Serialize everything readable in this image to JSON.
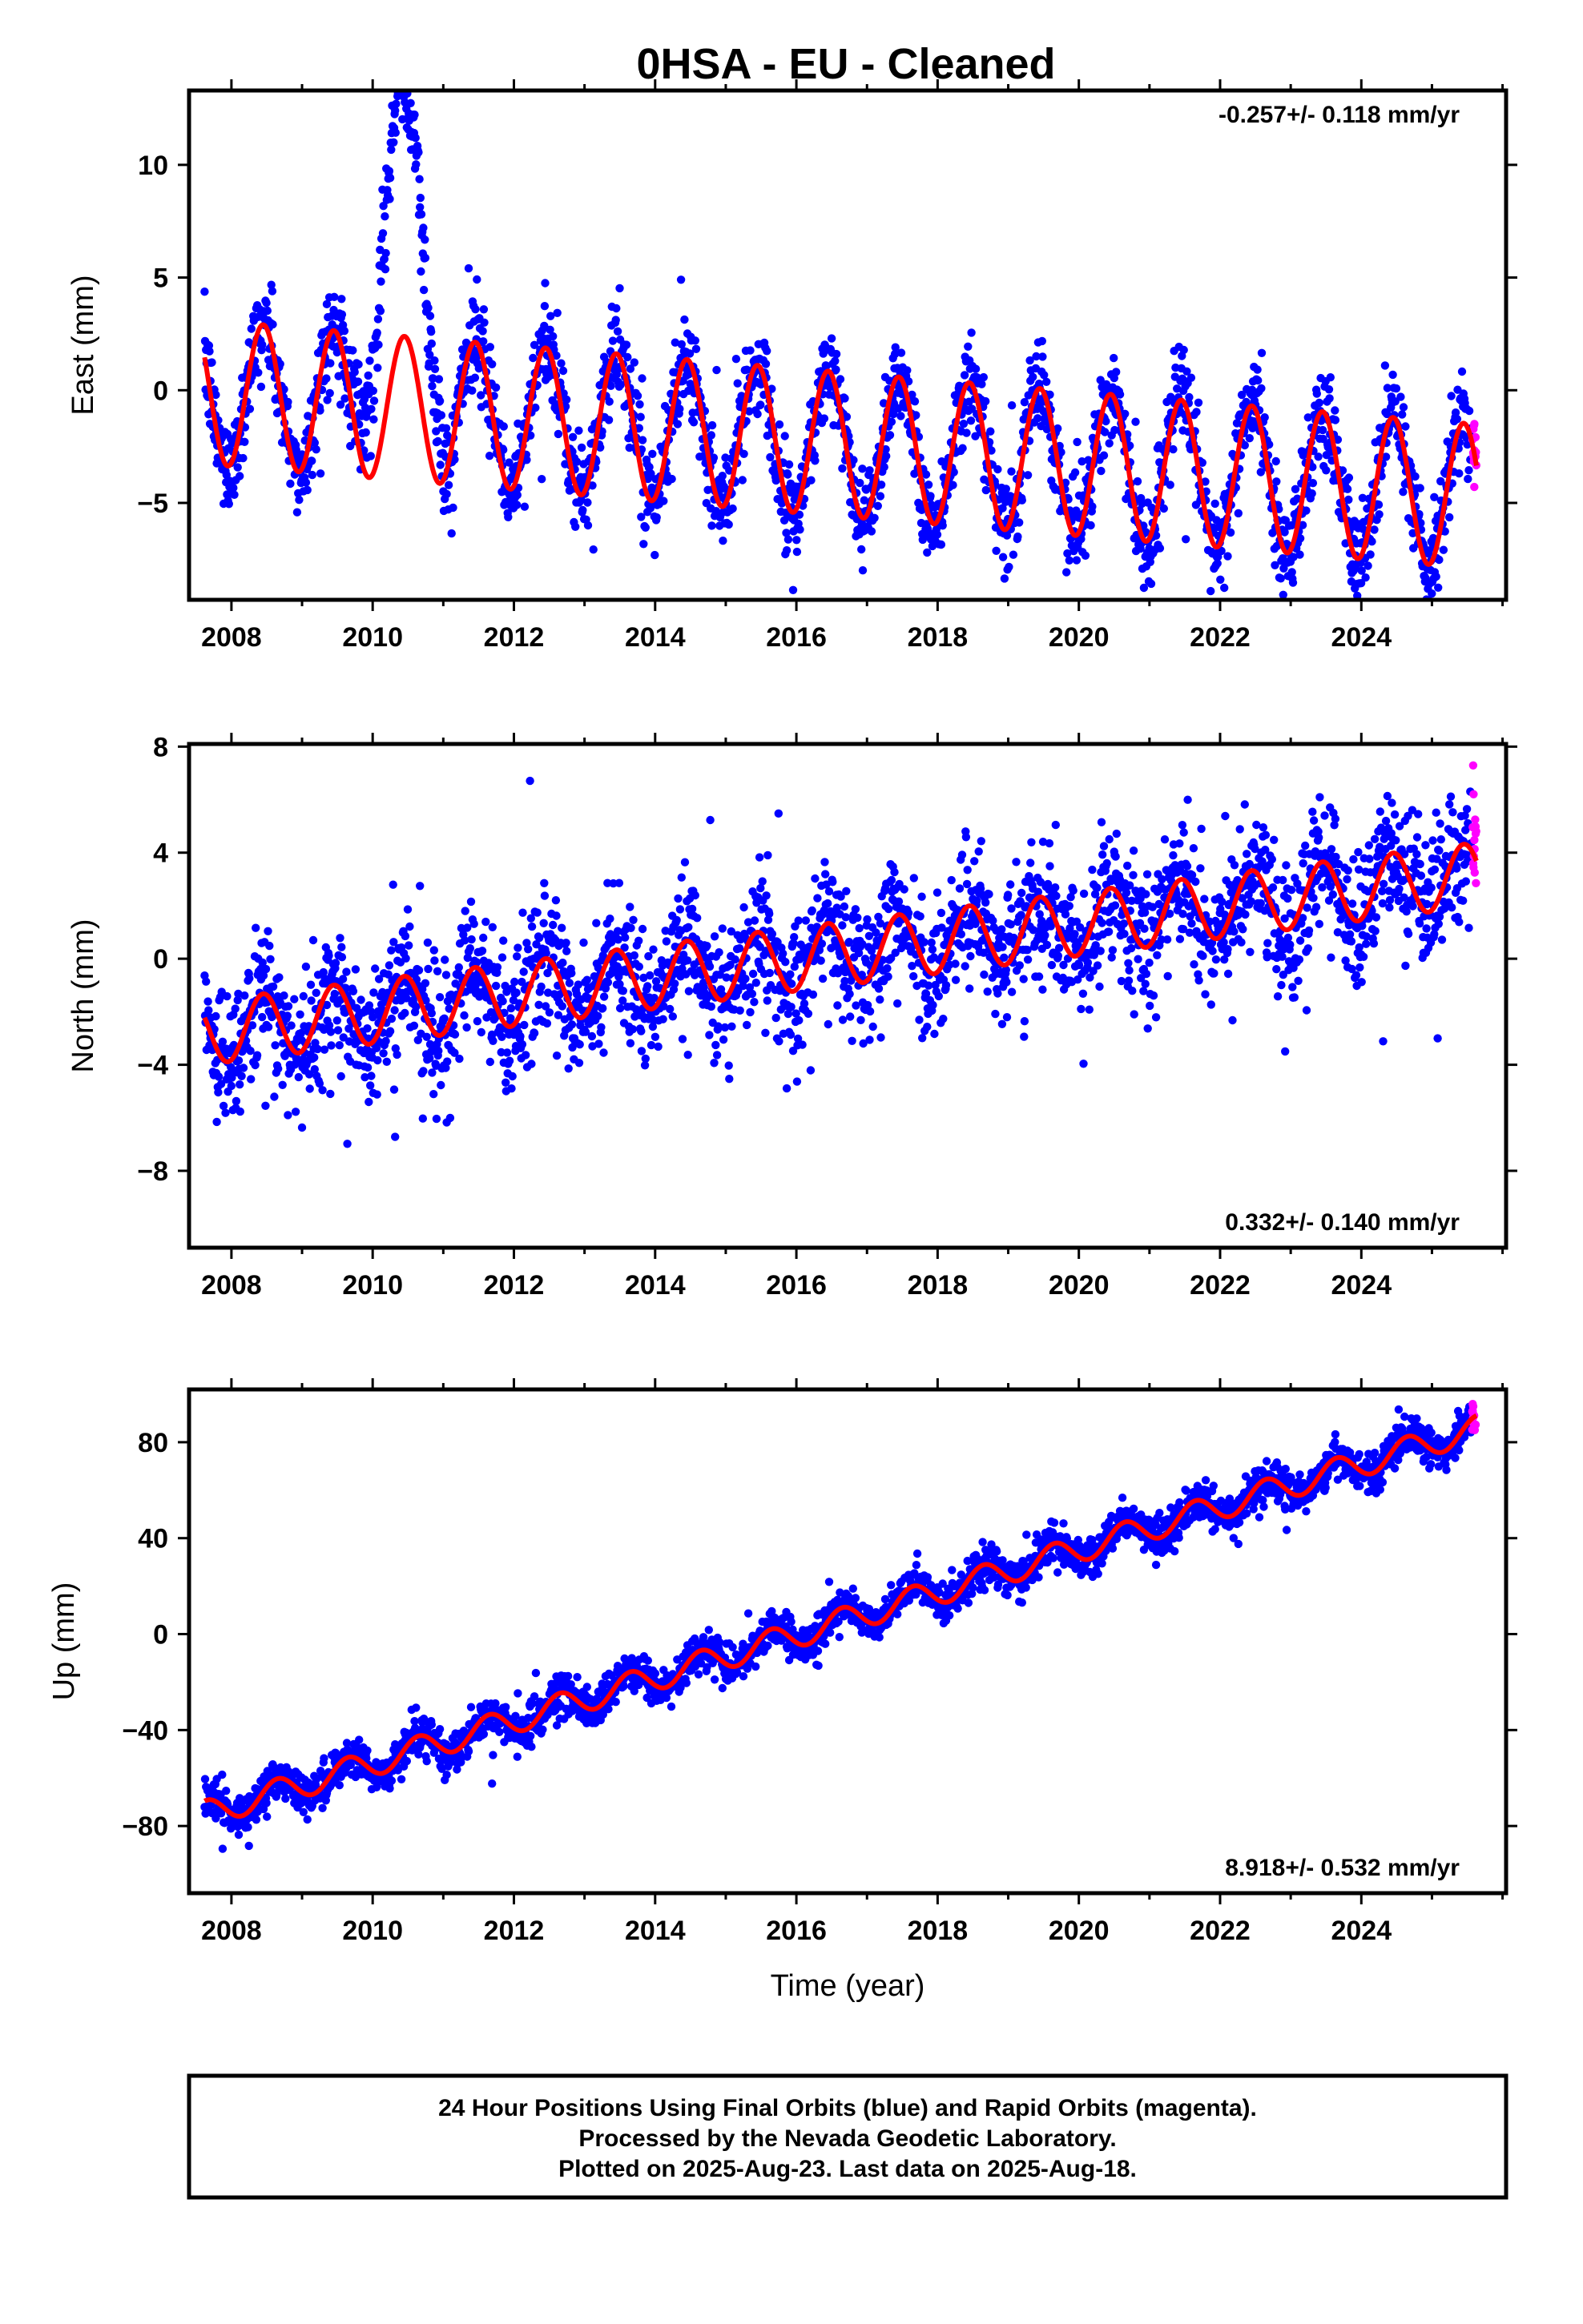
{
  "title": "0HSA  - EU - Cleaned",
  "colors": {
    "final": "#0000ff",
    "rapid": "#ff00ff",
    "model": "#ff0000",
    "frame": "#000000"
  },
  "footer": {
    "line1": "24 Hour Positions Using Final Orbits (blue) and Rapid Orbits (magenta).",
    "line2": "Processed by the Nevada Geodetic Laboratory.",
    "line3": "Plotted on 2025-Aug-23. Last data on 2025-Aug-18."
  },
  "chart_data": [
    {
      "type": "scatter",
      "component": "east",
      "ylabel": "East (mm)",
      "xlabel": "",
      "rate": "-0.257+/- 0.118 mm/yr",
      "rate_position": "top-right",
      "xlim": [
        2007.4,
        2026.05
      ],
      "ylim": [
        -9.3,
        13.3
      ],
      "xticks": [
        2008,
        2010,
        2012,
        2014,
        2016,
        2018,
        2020,
        2022,
        2024
      ],
      "xtick_labels": [
        "2008",
        "2010",
        "2012",
        "2014",
        "2016",
        "2018",
        "2020",
        "2022",
        "2024"
      ],
      "yticks": [
        -5,
        0,
        5,
        10
      ],
      "ytick_labels": [
        "−5",
        "0",
        "5",
        "10"
      ],
      "data_start": 2007.62,
      "final_end": 2025.55,
      "data_end": 2025.63,
      "model": {
        "offset": -0.08,
        "trend_per_year": -0.257,
        "annual_amplitude": 3.2,
        "annual_peak": 0.45,
        "amp_change_per_year": 0.0
      },
      "anomaly": {
        "start": 2009.7,
        "end": 2011.0,
        "peak_time": 2010.42,
        "peak_value": 12.0
      },
      "scatter_sigma": 1.05,
      "series": [
        {
          "name": "Final Orbits",
          "color": "#0000ff"
        },
        {
          "name": "Rapid Orbits",
          "color": "#ff00ff"
        }
      ]
    },
    {
      "type": "scatter",
      "component": "north",
      "ylabel": "North (mm)",
      "xlabel": "",
      "rate": "0.332+/- 0.140 mm/yr",
      "rate_position": "bottom-right",
      "xlim": [
        2007.4,
        2026.05
      ],
      "ylim": [
        -10.9,
        8.1
      ],
      "xticks": [
        2008,
        2010,
        2012,
        2014,
        2016,
        2018,
        2020,
        2022,
        2024
      ],
      "xtick_labels": [
        "2008",
        "2010",
        "2012",
        "2014",
        "2016",
        "2018",
        "2020",
        "2022",
        "2024"
      ],
      "yticks": [
        -8,
        -4,
        0,
        4,
        8
      ],
      "ytick_labels": [
        "−8",
        "−4",
        "0",
        "4",
        "8"
      ],
      "data_start": 2007.62,
      "final_end": 2025.55,
      "data_end": 2025.63,
      "model": {
        "offset": -2.8,
        "trend_per_year": 0.332,
        "annual_amplitude": 1.2,
        "annual_peak": 0.45,
        "amp_change_per_year": 0.0
      },
      "scatter_sigma": 1.25,
      "series": [
        {
          "name": "Final Orbits",
          "color": "#0000ff"
        },
        {
          "name": "Rapid Orbits",
          "color": "#ff00ff"
        }
      ]
    },
    {
      "type": "scatter",
      "component": "up",
      "ylabel": "Up (mm)",
      "xlabel": "Time (year)",
      "rate": "8.918+/- 0.532 mm/yr",
      "rate_position": "bottom-right",
      "xlim": [
        2007.4,
        2026.05
      ],
      "ylim": [
        -108,
        102
      ],
      "xticks": [
        2008,
        2010,
        2012,
        2014,
        2016,
        2018,
        2020,
        2022,
        2024
      ],
      "xtick_labels": [
        "2008",
        "2010",
        "2012",
        "2014",
        "2016",
        "2018",
        "2020",
        "2022",
        "2024"
      ],
      "yticks": [
        -80,
        -40,
        0,
        40,
        80
      ],
      "ytick_labels": [
        "−80",
        "−40",
        "0",
        "40",
        "80"
      ],
      "data_start": 2007.62,
      "final_end": 2025.55,
      "data_end": 2025.63,
      "model": {
        "offset": -75,
        "trend_per_year": 8.918,
        "annual_amplitude": 5.5,
        "annual_peak": 0.65,
        "amp_change_per_year": 0.0
      },
      "scatter_sigma": 4.0,
      "series": [
        {
          "name": "Final Orbits",
          "color": "#0000ff"
        },
        {
          "name": "Rapid Orbits",
          "color": "#ff00ff"
        }
      ]
    }
  ]
}
